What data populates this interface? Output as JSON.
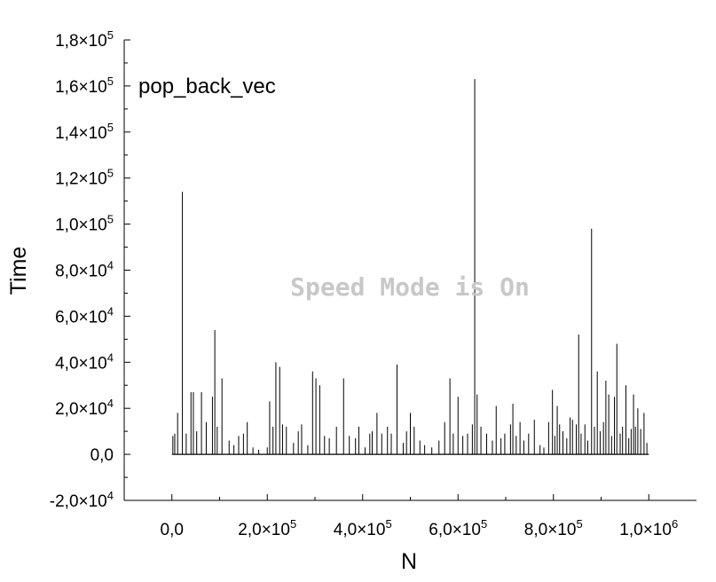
{
  "chart_data": {
    "type": "line",
    "title": "pop_back_vec",
    "xlabel": "N",
    "ylabel": "Time",
    "xlim": [
      -100000,
      1100000
    ],
    "ylim": [
      -20000,
      180000
    ],
    "x_ticks": [
      0,
      200000,
      400000,
      600000,
      800000,
      1000000
    ],
    "x_tick_labels": [
      {
        "mant": "0,0",
        "exp": ""
      },
      {
        "mant": "2,0×10",
        "exp": "5"
      },
      {
        "mant": "4,0×10",
        "exp": "5"
      },
      {
        "mant": "6,0×10",
        "exp": "5"
      },
      {
        "mant": "8,0×10",
        "exp": "5"
      },
      {
        "mant": "1,0×10",
        "exp": "6"
      }
    ],
    "y_ticks": [
      -20000,
      0,
      20000,
      40000,
      60000,
      80000,
      100000,
      120000,
      140000,
      160000,
      180000
    ],
    "y_tick_labels": [
      {
        "mant": "-2,0×10",
        "exp": "4"
      },
      {
        "mant": "0,0",
        "exp": ""
      },
      {
        "mant": "2,0×10",
        "exp": "4"
      },
      {
        "mant": "4,0×10",
        "exp": "4"
      },
      {
        "mant": "6,0×10",
        "exp": "4"
      },
      {
        "mant": "8,0×10",
        "exp": "4"
      },
      {
        "mant": "1,0×10",
        "exp": "5"
      },
      {
        "mant": "1,2×10",
        "exp": "5"
      },
      {
        "mant": "1,4×10",
        "exp": "5"
      },
      {
        "mant": "1,6×10",
        "exp": "5"
      },
      {
        "mant": "1,8×10",
        "exp": "5"
      }
    ],
    "series": [
      {
        "color": "#000000",
        "x_start": 0,
        "x_end": 1000000,
        "baseline": 0,
        "spikes": [
          [
            2000,
            8000
          ],
          [
            6000,
            9000
          ],
          [
            12000,
            18000
          ],
          [
            22000,
            114000
          ],
          [
            30000,
            9000
          ],
          [
            40000,
            27000
          ],
          [
            45000,
            27000
          ],
          [
            52000,
            10000
          ],
          [
            62000,
            27000
          ],
          [
            72000,
            14000
          ],
          [
            85000,
            25000
          ],
          [
            90000,
            54000
          ],
          [
            95000,
            12000
          ],
          [
            105000,
            33000
          ],
          [
            120000,
            6000
          ],
          [
            130000,
            4000
          ],
          [
            140000,
            8000
          ],
          [
            150000,
            9000
          ],
          [
            158000,
            14000
          ],
          [
            170000,
            3000
          ],
          [
            182000,
            2000
          ],
          [
            200000,
            3000
          ],
          [
            205000,
            23000
          ],
          [
            212000,
            12000
          ],
          [
            218000,
            40000
          ],
          [
            226000,
            38000
          ],
          [
            232000,
            13000
          ],
          [
            240000,
            12000
          ],
          [
            255000,
            5000
          ],
          [
            265000,
            10000
          ],
          [
            272000,
            13000
          ],
          [
            285000,
            4000
          ],
          [
            295000,
            36000
          ],
          [
            302000,
            33000
          ],
          [
            310000,
            30000
          ],
          [
            320000,
            8000
          ],
          [
            330000,
            7000
          ],
          [
            345000,
            12000
          ],
          [
            360000,
            33000
          ],
          [
            372000,
            8000
          ],
          [
            385000,
            7000
          ],
          [
            392000,
            12000
          ],
          [
            405000,
            3000
          ],
          [
            415000,
            9000
          ],
          [
            420000,
            10000
          ],
          [
            430000,
            18000
          ],
          [
            440000,
            9000
          ],
          [
            452000,
            12000
          ],
          [
            460000,
            9000
          ],
          [
            472000,
            39000
          ],
          [
            485000,
            5000
          ],
          [
            492000,
            10000
          ],
          [
            500000,
            18000
          ],
          [
            508000,
            12000
          ],
          [
            520000,
            6000
          ],
          [
            530000,
            4000
          ],
          [
            545000,
            3000
          ],
          [
            560000,
            6000
          ],
          [
            572000,
            14000
          ],
          [
            583000,
            33000
          ],
          [
            590000,
            9000
          ],
          [
            600000,
            25000
          ],
          [
            610000,
            8000
          ],
          [
            620000,
            9000
          ],
          [
            630000,
            13000
          ],
          [
            635000,
            163000
          ],
          [
            640000,
            26000
          ],
          [
            648000,
            12000
          ],
          [
            660000,
            9000
          ],
          [
            672000,
            6000
          ],
          [
            680000,
            21000
          ],
          [
            690000,
            7000
          ],
          [
            698000,
            9000
          ],
          [
            710000,
            13000
          ],
          [
            715000,
            22000
          ],
          [
            722000,
            8000
          ],
          [
            730000,
            14000
          ],
          [
            738000,
            6000
          ],
          [
            748000,
            9000
          ],
          [
            760000,
            15000
          ],
          [
            772000,
            4000
          ],
          [
            780000,
            3000
          ],
          [
            790000,
            14000
          ],
          [
            798000,
            28000
          ],
          [
            803000,
            8000
          ],
          [
            808000,
            21000
          ],
          [
            813000,
            13000
          ],
          [
            820000,
            10000
          ],
          [
            828000,
            7000
          ],
          [
            835000,
            16000
          ],
          [
            840000,
            15000
          ],
          [
            848000,
            13000
          ],
          [
            853000,
            52000
          ],
          [
            858000,
            9000
          ],
          [
            866000,
            13000
          ],
          [
            872000,
            6000
          ],
          [
            880000,
            98000
          ],
          [
            886000,
            12000
          ],
          [
            892000,
            36000
          ],
          [
            898000,
            10000
          ],
          [
            905000,
            14000
          ],
          [
            910000,
            32000
          ],
          [
            916000,
            26000
          ],
          [
            922000,
            8000
          ],
          [
            928000,
            25000
          ],
          [
            933000,
            48000
          ],
          [
            940000,
            9000
          ],
          [
            945000,
            12000
          ],
          [
            952000,
            30000
          ],
          [
            958000,
            7000
          ],
          [
            963000,
            11000
          ],
          [
            968000,
            26000
          ],
          [
            972000,
            12000
          ],
          [
            977000,
            20000
          ],
          [
            983000,
            11000
          ],
          [
            990000,
            18000
          ],
          [
            996000,
            5000
          ]
        ]
      }
    ]
  },
  "watermark": "Speed Mode is On"
}
